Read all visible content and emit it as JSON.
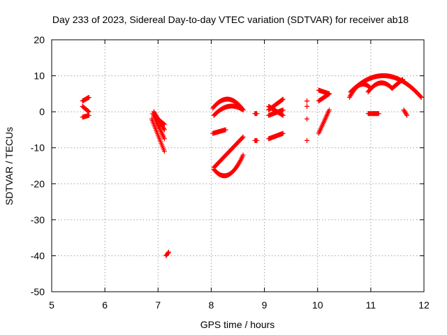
{
  "chart_data": {
    "type": "scatter",
    "title": "Day 233 of 2023, Sidereal Day-to-day VTEC variation (SDTVAR) for receiver ab18",
    "xlabel": "GPS time / hours",
    "ylabel": "SDTVAR / TECUs",
    "xlim": [
      5,
      12
    ],
    "ylim": [
      -50,
      20
    ],
    "xticks": [
      "5",
      "6",
      "7",
      "8",
      "9",
      "10",
      "11",
      "12"
    ],
    "yticks": [
      "20",
      "10",
      "0",
      "-10",
      "-20",
      "-30",
      "-40",
      "-50"
    ],
    "marker": "plus",
    "color": "#ff0000",
    "grid": true,
    "series": [
      {
        "segments": [
          {
            "x0": 5.58,
            "x1": 5.7,
            "y0": 3.0,
            "y1": 4.0
          },
          {
            "x0": 5.58,
            "x1": 5.7,
            "y0": 1.5,
            "y1": 0.0
          },
          {
            "x0": 5.58,
            "x1": 5.7,
            "y0": -1.5,
            "y1": -1.0
          }
        ]
      },
      {
        "segments": [
          {
            "x0": 6.88,
            "x1": 7.12,
            "y0": -2.0,
            "y1": -11.0
          },
          {
            "x0": 6.9,
            "x1": 7.12,
            "y0": -0.5,
            "y1": -7.5
          },
          {
            "x0": 6.92,
            "x1": 7.12,
            "y0": 0.0,
            "y1": -5.0
          },
          {
            "x0": 6.95,
            "x1": 7.12,
            "y0": -1.5,
            "y1": -3.5
          }
        ]
      },
      {
        "segments": [
          {
            "x0": 7.15,
            "x1": 7.2,
            "y0": -40.0,
            "y1": -39.0
          }
        ]
      },
      {
        "segments": [
          {
            "x0": 8.03,
            "x1": 8.6,
            "y0": 1.0,
            "y1": 0.5,
            "peak": 3.5
          },
          {
            "x0": 8.05,
            "x1": 8.6,
            "y0": -1.0,
            "y1": 0.5,
            "peak": 1.5
          },
          {
            "x0": 8.03,
            "x1": 8.27,
            "y0": -6.0,
            "y1": -5.0
          },
          {
            "x0": 8.05,
            "x1": 8.6,
            "y0": -15.5,
            "y1": -7.0
          },
          {
            "x0": 8.05,
            "x1": 8.6,
            "y0": -16.0,
            "y1": -12.0,
            "peak": -17.5
          }
        ]
      },
      {
        "segments": [
          {
            "x0": 8.82,
            "x1": 8.86,
            "y0": -8.0,
            "y1": -8.0
          },
          {
            "x0": 8.82,
            "x1": 8.86,
            "y0": -0.5,
            "y1": -0.5
          },
          {
            "x0": 9.08,
            "x1": 9.35,
            "y0": -7.5,
            "y1": -6.0
          },
          {
            "x0": 9.08,
            "x1": 9.35,
            "y0": 0.5,
            "y1": 3.5
          },
          {
            "x0": 9.08,
            "x1": 9.35,
            "y0": 1.5,
            "y1": -1.0
          },
          {
            "x0": 9.08,
            "x1": 9.35,
            "y0": -1.0,
            "y1": 0.5
          }
        ]
      },
      {
        "segments": [
          {
            "x0": 9.8,
            "x1": 9.8,
            "y0": 3.0,
            "y1": 3.0
          },
          {
            "x0": 9.8,
            "x1": 9.8,
            "y0": 1.5,
            "y1": 1.5
          },
          {
            "x0": 9.8,
            "x1": 9.8,
            "y0": -2.0,
            "y1": -2.0
          },
          {
            "x0": 9.8,
            "x1": 9.8,
            "y0": -8.0,
            "y1": -8.0
          },
          {
            "x0": 10.02,
            "x1": 10.22,
            "y0": 6.0,
            "y1": 5.0
          },
          {
            "x0": 10.02,
            "x1": 10.22,
            "y0": 3.0,
            "y1": 5.0
          },
          {
            "x0": 10.02,
            "x1": 10.22,
            "y0": -6.0,
            "y1": 0.5
          }
        ]
      },
      {
        "segments": [
          {
            "x0": 10.6,
            "x1": 11.0,
            "y0": 4.0,
            "y1": 6.5,
            "peak": 7.5
          },
          {
            "x0": 10.62,
            "x1": 11.95,
            "y0": 5.5,
            "y1": 4.0,
            "peak": 10.0
          },
          {
            "x0": 10.95,
            "x1": 11.4,
            "y0": 5.5,
            "y1": 6.5,
            "peak": 8.0
          },
          {
            "x0": 11.4,
            "x1": 11.6,
            "y0": 6.5,
            "y1": 9.0
          },
          {
            "x0": 10.95,
            "x1": 11.05,
            "y0": -0.5,
            "y1": -0.5
          },
          {
            "x0": 11.05,
            "x1": 11.15,
            "y0": -0.5,
            "y1": -0.5
          },
          {
            "x0": 11.62,
            "x1": 11.68,
            "y0": 0.5,
            "y1": -1.0
          }
        ]
      }
    ]
  }
}
